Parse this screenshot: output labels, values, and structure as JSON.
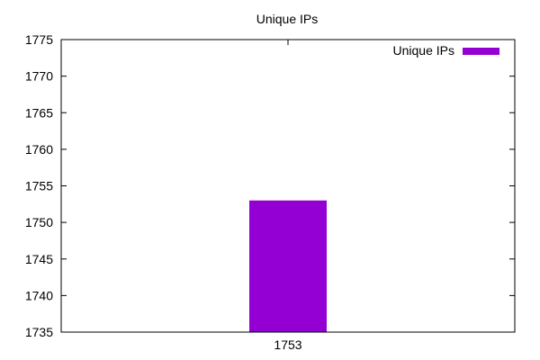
{
  "chart_data": {
    "type": "bar",
    "title": "Unique IPs",
    "xlabel": "",
    "ylabel": "",
    "categories": [
      "1753"
    ],
    "series": [
      {
        "name": "Unique IPs",
        "values": [
          1753
        ]
      }
    ],
    "ylim": [
      1735,
      1775
    ],
    "yticks": [
      1735,
      1740,
      1745,
      1750,
      1755,
      1760,
      1765,
      1770,
      1775
    ],
    "bar_color": "#9400d3",
    "legend_position": "top-right",
    "grid": false
  }
}
